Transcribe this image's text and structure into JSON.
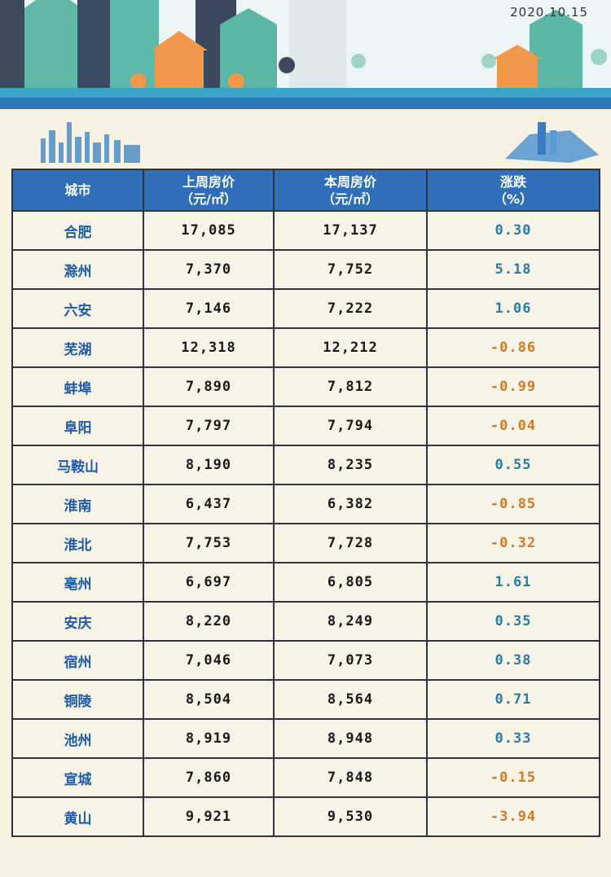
{
  "date": "2020.10.15",
  "table": {
    "headers": [
      [
        "城市"
      ],
      [
        "上周房价",
        "（元/㎡）"
      ],
      [
        "本周房价",
        "（元/㎡）"
      ],
      [
        "涨跌",
        "（%）"
      ]
    ],
    "rows": [
      [
        "合肥",
        "17,085",
        "17,137",
        "0.30"
      ],
      [
        "滁州",
        "7,370",
        "7,752",
        "5.18"
      ],
      [
        "六安",
        "7,146",
        "7,222",
        "1.06"
      ],
      [
        "芜湖",
        "12,318",
        "12,212",
        "-0.86"
      ],
      [
        "蚌埠",
        "7,890",
        "7,812",
        "-0.99"
      ],
      [
        "阜阳",
        "7,797",
        "7,794",
        "-0.04"
      ],
      [
        "马鞍山",
        "8,190",
        "8,235",
        "0.55"
      ],
      [
        "淮南",
        "6,437",
        "6,382",
        "-0.85"
      ],
      [
        "淮北",
        "7,753",
        "7,728",
        "-0.32"
      ],
      [
        "亳州",
        "6,697",
        "6,805",
        "1.61"
      ],
      [
        "安庆",
        "8,220",
        "8,249",
        "0.35"
      ],
      [
        "宿州",
        "7,046",
        "7,073",
        "0.38"
      ],
      [
        "铜陵",
        "8,504",
        "8,564",
        "0.71"
      ],
      [
        "池州",
        "8,919",
        "8,948",
        "0.33"
      ],
      [
        "宣城",
        "7,860",
        "7,848",
        "-0.15"
      ],
      [
        "黄山",
        "9,921",
        "9,530",
        "-3.94"
      ]
    ]
  }
}
